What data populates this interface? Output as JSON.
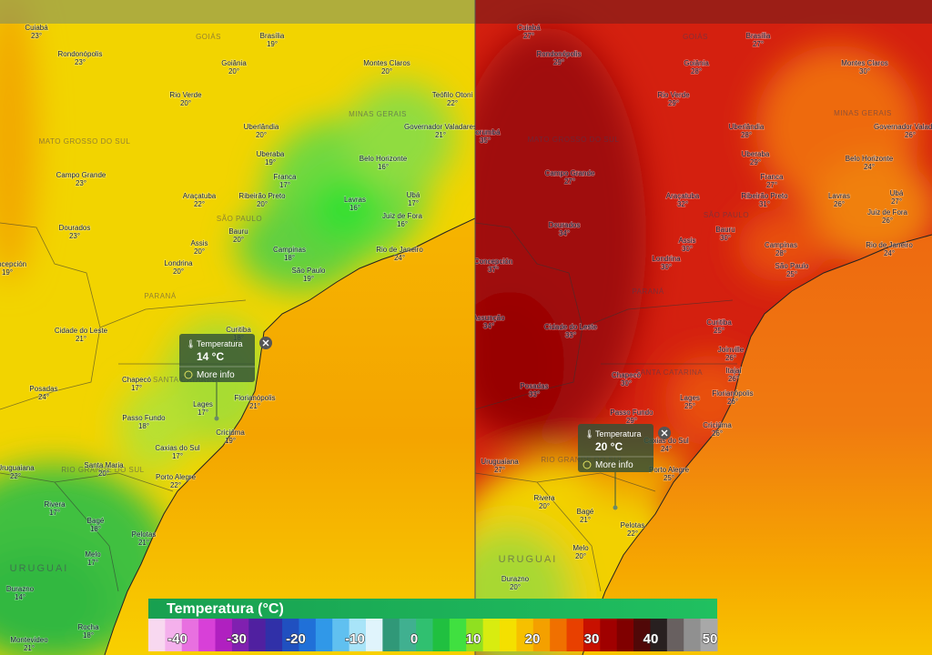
{
  "left_map": {
    "cities": [
      {
        "name": "Cuiabá",
        "temp": "23°"
      },
      {
        "name": "Rondonópolis",
        "temp": "23°"
      },
      {
        "name": "Goiânia",
        "temp": "20°"
      },
      {
        "name": "Brasília",
        "temp": "19°"
      },
      {
        "name": "Montes Claros",
        "temp": "20°"
      },
      {
        "name": "Rio Verde",
        "temp": "20°"
      },
      {
        "name": "Teófilo Otoni",
        "temp": "22°"
      },
      {
        "name": "Uberlândia",
        "temp": "20°"
      },
      {
        "name": "Governador Valadares",
        "temp": "21°"
      },
      {
        "name": "Uberaba",
        "temp": "19°"
      },
      {
        "name": "Belo Horizonte",
        "temp": "16°"
      },
      {
        "name": "Campo Grande",
        "temp": "23°"
      },
      {
        "name": "Franca",
        "temp": "17°"
      },
      {
        "name": "Araçatuba",
        "temp": "22°"
      },
      {
        "name": "Ribeirão Preto",
        "temp": "20°"
      },
      {
        "name": "Lavras",
        "temp": "16°"
      },
      {
        "name": "Ubá",
        "temp": "17°"
      },
      {
        "name": "Juiz de Fora",
        "temp": "16°"
      },
      {
        "name": "Dourados",
        "temp": "23°"
      },
      {
        "name": "Bauru",
        "temp": "20°"
      },
      {
        "name": "Assis",
        "temp": "20°"
      },
      {
        "name": "Campinas",
        "temp": "18°"
      },
      {
        "name": "Rio de Janeiro",
        "temp": "24°"
      },
      {
        "name": "Londrina",
        "temp": "20°"
      },
      {
        "name": "São Paulo",
        "temp": "19°"
      },
      {
        "name": "Concepción",
        "temp": "19°"
      },
      {
        "name": "Curitiba",
        "temp": "18°"
      },
      {
        "name": "Cidade do Leste",
        "temp": "21°"
      },
      {
        "name": "Chapecó",
        "temp": "17°"
      },
      {
        "name": "Posadas",
        "temp": "24°"
      },
      {
        "name": "Lages",
        "temp": "17°"
      },
      {
        "name": "Florianópolis",
        "temp": "21°"
      },
      {
        "name": "Passo Fundo",
        "temp": "18°"
      },
      {
        "name": "Criciúma",
        "temp": "19°"
      },
      {
        "name": "Caxias do Sul",
        "temp": "17°"
      },
      {
        "name": "Uruguaiana",
        "temp": "22°"
      },
      {
        "name": "Santa Maria",
        "temp": "20°"
      },
      {
        "name": "Porto Alegre",
        "temp": "22°"
      },
      {
        "name": "Rivera",
        "temp": "17°"
      },
      {
        "name": "Bagé",
        "temp": "18°"
      },
      {
        "name": "Melo",
        "temp": "17°"
      },
      {
        "name": "Pelotas",
        "temp": "21°"
      },
      {
        "name": "Durazno",
        "temp": "14°"
      },
      {
        "name": "Rocha",
        "temp": "18°"
      },
      {
        "name": "Montevideo",
        "temp": "21°"
      }
    ],
    "regions": [
      "GOIÁS",
      "MINAS GERAIS",
      "MATO GROSSO DO SUL",
      "SÃO PAULO",
      "PARANÁ",
      "SANTA CATARINA",
      "RIO GRANDE DO SUL",
      "URUGUAI"
    ],
    "tooltip": {
      "title": "Temperatura",
      "value": "14 °C",
      "link": "More info"
    }
  },
  "right_map": {
    "cities": [
      {
        "name": "Cuiabá",
        "temp": "27°"
      },
      {
        "name": "Rondonópolis",
        "temp": "29°"
      },
      {
        "name": "Goiânia",
        "temp": "28°"
      },
      {
        "name": "Brasília",
        "temp": "27°"
      },
      {
        "name": "Montes Claros",
        "temp": "30°"
      },
      {
        "name": "Rio Verde",
        "temp": "29°"
      },
      {
        "name": "Uberlândia",
        "temp": "28°"
      },
      {
        "name": "Governador Valadares",
        "temp": "26°"
      },
      {
        "name": "Corumbá",
        "temp": "35°"
      },
      {
        "name": "Uberaba",
        "temp": "29°"
      },
      {
        "name": "Belo Horizonte",
        "temp": "24°"
      },
      {
        "name": "Campo Grande",
        "temp": "27°"
      },
      {
        "name": "Franca",
        "temp": "27°"
      },
      {
        "name": "Araçatuba",
        "temp": "32°"
      },
      {
        "name": "Ribeirão Preto",
        "temp": "31°"
      },
      {
        "name": "Lavras",
        "temp": "26°"
      },
      {
        "name": "Ubá",
        "temp": "27°"
      },
      {
        "name": "Juiz de Fora",
        "temp": "26°"
      },
      {
        "name": "Dourados",
        "temp": "34°"
      },
      {
        "name": "Bauru",
        "temp": "30°"
      },
      {
        "name": "Assis",
        "temp": "30°"
      },
      {
        "name": "Campinas",
        "temp": "28°"
      },
      {
        "name": "Rio de Janeiro",
        "temp": "24°"
      },
      {
        "name": "Londrina",
        "temp": "30°"
      },
      {
        "name": "São Paulo",
        "temp": "25°"
      },
      {
        "name": "Concepción",
        "temp": "37°"
      },
      {
        "name": "Assunção",
        "temp": "34°"
      },
      {
        "name": "Curitiba",
        "temp": "25°"
      },
      {
        "name": "Cidade do Leste",
        "temp": "33°"
      },
      {
        "name": "Joinville",
        "temp": "26°"
      },
      {
        "name": "Itajaí",
        "temp": "26°"
      },
      {
        "name": "Chapecó",
        "temp": "30°"
      },
      {
        "name": "Posadas",
        "temp": "33°"
      },
      {
        "name": "Lages",
        "temp": "25°"
      },
      {
        "name": "Florianópolis",
        "temp": "26°"
      },
      {
        "name": "Passo Fundo",
        "temp": "29°"
      },
      {
        "name": "Criciúma",
        "temp": "26°"
      },
      {
        "name": "Caxias do Sul",
        "temp": "24°"
      },
      {
        "name": "Uruguaiana",
        "temp": "27°"
      },
      {
        "name": "Porto Alegre",
        "temp": "25°"
      },
      {
        "name": "Rivera",
        "temp": "20°"
      },
      {
        "name": "Bagé",
        "temp": "21°"
      },
      {
        "name": "Pelotas",
        "temp": "22°"
      },
      {
        "name": "Melo",
        "temp": "20°"
      },
      {
        "name": "Durazno",
        "temp": "20°"
      }
    ],
    "regions": [
      "GOIÁS",
      "MINAS GERAIS",
      "MATO GROSSO DO SUL",
      "SÃO PAULO",
      "PARANÁ",
      "SANTA CATARINA",
      "RIO GRANDE DO SUL",
      "URUGUAI"
    ],
    "tooltip": {
      "title": "Temperatura",
      "value": "20 °C",
      "link": "More info"
    }
  },
  "legend": {
    "title": "Temperatura (°C)",
    "labels": [
      "-40",
      "-30",
      "-20",
      "-10",
      "0",
      "10",
      "20",
      "30",
      "40",
      "50"
    ]
  }
}
